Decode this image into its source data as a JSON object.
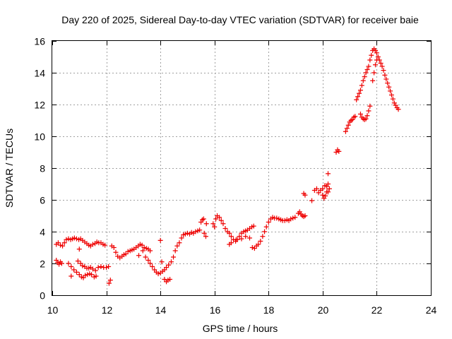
{
  "chart_data": {
    "type": "scatter",
    "title": "Day 220 of 2025, Sidereal Day-to-day VTEC variation (SDTVAR) for receiver baie",
    "xlabel": "GPS time / hours",
    "ylabel": "SDTVAR / TECUs",
    "xlim": [
      10,
      24
    ],
    "ylim": [
      0,
      16
    ],
    "xticks": [
      "10",
      "12",
      "14",
      "16",
      "18",
      "20",
      "22",
      "24"
    ],
    "yticks": [
      "0",
      "2",
      "4",
      "6",
      "8",
      "10",
      "12",
      "14",
      "16"
    ],
    "grid": true,
    "marker": "+",
    "color": "#ee0000",
    "series": [
      {
        "name": "SDTVAR",
        "points": [
          [
            10.15,
            3.2
          ],
          [
            10.22,
            3.3
          ],
          [
            10.3,
            3.15
          ],
          [
            10.38,
            3.1
          ],
          [
            10.45,
            3.3
          ],
          [
            10.52,
            3.5
          ],
          [
            10.6,
            3.55
          ],
          [
            10.68,
            3.5
          ],
          [
            10.75,
            3.55
          ],
          [
            10.82,
            3.6
          ],
          [
            10.9,
            3.55
          ],
          [
            10.98,
            3.5
          ],
          [
            11.05,
            3.55
          ],
          [
            11.12,
            3.45
          ],
          [
            11.2,
            3.35
          ],
          [
            11.28,
            3.25
          ],
          [
            11.35,
            3.15
          ],
          [
            11.42,
            3.1
          ],
          [
            11.5,
            3.2
          ],
          [
            11.58,
            3.25
          ],
          [
            11.65,
            3.35
          ],
          [
            11.72,
            3.3
          ],
          [
            11.8,
            3.3
          ],
          [
            11.88,
            3.2
          ],
          [
            11.95,
            3.15
          ],
          [
            10.15,
            2.2
          ],
          [
            10.2,
            2.05
          ],
          [
            10.25,
            1.95
          ],
          [
            10.3,
            2.1
          ],
          [
            10.35,
            2.0
          ],
          [
            10.6,
            2.0
          ],
          [
            10.7,
            1.8
          ],
          [
            10.8,
            1.6
          ],
          [
            10.9,
            1.45
          ],
          [
            11.0,
            1.3
          ],
          [
            11.08,
            1.15
          ],
          [
            11.15,
            1.1
          ],
          [
            11.22,
            1.25
          ],
          [
            11.3,
            1.3
          ],
          [
            11.38,
            1.35
          ],
          [
            11.45,
            1.3
          ],
          [
            11.55,
            1.15
          ],
          [
            11.62,
            1.2
          ],
          [
            10.7,
            1.2
          ],
          [
            10.95,
            2.15
          ],
          [
            11.05,
            2.0
          ],
          [
            11.12,
            1.85
          ],
          [
            11.2,
            1.8
          ],
          [
            11.28,
            1.7
          ],
          [
            11.35,
            1.7
          ],
          [
            11.42,
            1.75
          ],
          [
            11.5,
            1.65
          ],
          [
            11.6,
            1.55
          ],
          [
            11.7,
            1.75
          ],
          [
            11.8,
            1.8
          ],
          [
            11.9,
            1.75
          ],
          [
            12.0,
            1.75
          ],
          [
            12.08,
            1.8
          ],
          [
            11.0,
            2.9
          ],
          [
            12.1,
            0.75
          ],
          [
            12.15,
            0.95
          ],
          [
            12.2,
            3.1
          ],
          [
            12.28,
            3.0
          ],
          [
            12.35,
            2.7
          ],
          [
            12.42,
            2.45
          ],
          [
            12.5,
            2.35
          ],
          [
            12.58,
            2.45
          ],
          [
            12.65,
            2.55
          ],
          [
            12.72,
            2.6
          ],
          [
            12.8,
            2.75
          ],
          [
            12.88,
            2.8
          ],
          [
            12.95,
            2.85
          ],
          [
            13.02,
            2.9
          ],
          [
            13.1,
            3.0
          ],
          [
            13.18,
            3.1
          ],
          [
            13.25,
            3.2
          ],
          [
            13.32,
            3.15
          ],
          [
            13.4,
            3.0
          ],
          [
            13.48,
            2.95
          ],
          [
            13.55,
            2.9
          ],
          [
            13.62,
            2.8
          ],
          [
            13.2,
            2.5
          ],
          [
            13.35,
            2.8
          ],
          [
            13.45,
            2.4
          ],
          [
            13.55,
            2.2
          ],
          [
            13.62,
            2.0
          ],
          [
            13.7,
            1.8
          ],
          [
            13.78,
            1.6
          ],
          [
            13.85,
            1.45
          ],
          [
            13.92,
            1.35
          ],
          [
            14.0,
            1.4
          ],
          [
            14.08,
            1.5
          ],
          [
            14.15,
            1.6
          ],
          [
            14.22,
            1.75
          ],
          [
            14.3,
            1.9
          ],
          [
            14.0,
            3.45
          ],
          [
            14.05,
            2.1
          ],
          [
            14.15,
            1.0
          ],
          [
            14.22,
            0.85
          ],
          [
            14.28,
            0.95
          ],
          [
            14.35,
            1.0
          ],
          [
            14.4,
            2.1
          ],
          [
            14.48,
            2.4
          ],
          [
            14.55,
            2.8
          ],
          [
            14.62,
            3.1
          ],
          [
            14.7,
            3.3
          ],
          [
            14.78,
            3.6
          ],
          [
            14.85,
            3.8
          ],
          [
            14.92,
            3.85
          ],
          [
            15.0,
            3.9
          ],
          [
            15.08,
            3.85
          ],
          [
            15.15,
            3.95
          ],
          [
            15.22,
            3.9
          ],
          [
            15.3,
            4.0
          ],
          [
            15.38,
            4.05
          ],
          [
            15.45,
            4.1
          ],
          [
            15.5,
            4.6
          ],
          [
            15.55,
            4.75
          ],
          [
            15.6,
            4.8
          ],
          [
            15.62,
            3.9
          ],
          [
            15.68,
            3.7
          ],
          [
            15.7,
            4.5
          ],
          [
            15.95,
            4.5
          ],
          [
            16.0,
            4.3
          ],
          [
            16.05,
            4.8
          ],
          [
            16.1,
            5.0
          ],
          [
            16.18,
            4.9
          ],
          [
            16.25,
            4.7
          ],
          [
            16.32,
            4.5
          ],
          [
            16.4,
            4.2
          ],
          [
            16.48,
            4.0
          ],
          [
            16.55,
            3.9
          ],
          [
            16.62,
            3.7
          ],
          [
            16.7,
            3.5
          ],
          [
            16.78,
            3.4
          ],
          [
            16.85,
            3.5
          ],
          [
            16.92,
            3.7
          ],
          [
            17.0,
            3.9
          ],
          [
            17.08,
            4.0
          ],
          [
            17.15,
            4.05
          ],
          [
            17.22,
            4.1
          ],
          [
            17.3,
            4.2
          ],
          [
            17.38,
            4.3
          ],
          [
            17.45,
            4.35
          ],
          [
            16.55,
            3.2
          ],
          [
            16.62,
            3.3
          ],
          [
            16.8,
            3.5
          ],
          [
            17.0,
            3.55
          ],
          [
            17.15,
            3.7
          ],
          [
            17.3,
            3.6
          ],
          [
            17.4,
            3.0
          ],
          [
            17.48,
            2.95
          ],
          [
            17.55,
            3.1
          ],
          [
            17.62,
            3.2
          ],
          [
            17.7,
            3.4
          ],
          [
            17.78,
            3.7
          ],
          [
            17.85,
            4.0
          ],
          [
            17.92,
            4.3
          ],
          [
            18.0,
            4.6
          ],
          [
            18.08,
            4.8
          ],
          [
            18.15,
            4.9
          ],
          [
            18.22,
            4.85
          ],
          [
            18.3,
            4.85
          ],
          [
            18.38,
            4.8
          ],
          [
            18.45,
            4.75
          ],
          [
            18.52,
            4.7
          ],
          [
            18.6,
            4.7
          ],
          [
            18.68,
            4.75
          ],
          [
            18.75,
            4.7
          ],
          [
            18.82,
            4.8
          ],
          [
            18.9,
            4.85
          ],
          [
            18.98,
            4.9
          ],
          [
            19.1,
            5.15
          ],
          [
            19.15,
            5.25
          ],
          [
            19.2,
            5.1
          ],
          [
            19.25,
            5.0
          ],
          [
            19.3,
            4.95
          ],
          [
            19.35,
            5.0
          ],
          [
            19.3,
            6.4
          ],
          [
            19.35,
            6.3
          ],
          [
            19.6,
            5.95
          ],
          [
            19.7,
            6.6
          ],
          [
            19.78,
            6.7
          ],
          [
            19.85,
            6.45
          ],
          [
            19.92,
            6.6
          ],
          [
            20.0,
            6.7
          ],
          [
            20.08,
            6.9
          ],
          [
            20.15,
            6.85
          ],
          [
            20.2,
            7.0
          ],
          [
            20.0,
            6.3
          ],
          [
            20.05,
            6.1
          ],
          [
            20.1,
            6.25
          ],
          [
            20.15,
            6.5
          ],
          [
            20.2,
            6.5
          ],
          [
            20.25,
            6.7
          ],
          [
            20.2,
            7.65
          ],
          [
            20.5,
            9.0
          ],
          [
            20.55,
            9.15
          ],
          [
            20.6,
            9.05
          ],
          [
            20.85,
            10.3
          ],
          [
            20.9,
            10.5
          ],
          [
            20.95,
            10.7
          ],
          [
            21.0,
            10.9
          ],
          [
            21.05,
            11.0
          ],
          [
            21.1,
            11.05
          ],
          [
            21.15,
            11.2
          ],
          [
            21.2,
            11.25
          ],
          [
            21.25,
            12.3
          ],
          [
            21.3,
            12.5
          ],
          [
            21.35,
            12.7
          ],
          [
            21.4,
            12.9
          ],
          [
            21.45,
            13.2
          ],
          [
            21.5,
            13.5
          ],
          [
            21.55,
            13.75
          ],
          [
            21.6,
            14.0
          ],
          [
            21.65,
            14.2
          ],
          [
            21.7,
            14.4
          ],
          [
            21.75,
            14.8
          ],
          [
            21.8,
            15.1
          ],
          [
            21.85,
            15.4
          ],
          [
            21.9,
            15.5
          ],
          [
            21.95,
            15.4
          ],
          [
            22.0,
            15.25
          ],
          [
            22.05,
            15.0
          ],
          [
            22.1,
            14.8
          ],
          [
            22.15,
            14.6
          ],
          [
            22.2,
            14.4
          ],
          [
            22.25,
            14.15
          ],
          [
            22.3,
            13.85
          ],
          [
            22.35,
            13.6
          ],
          [
            22.4,
            13.35
          ],
          [
            22.45,
            13.1
          ],
          [
            22.5,
            12.85
          ],
          [
            22.55,
            12.6
          ],
          [
            22.6,
            12.35
          ],
          [
            22.65,
            12.1
          ],
          [
            22.7,
            11.95
          ],
          [
            22.75,
            11.8
          ],
          [
            22.8,
            11.7
          ],
          [
            21.4,
            11.4
          ],
          [
            21.45,
            11.2
          ],
          [
            21.5,
            11.1
          ],
          [
            21.55,
            11.05
          ],
          [
            21.6,
            11.1
          ],
          [
            21.65,
            11.3
          ],
          [
            21.7,
            11.6
          ],
          [
            21.75,
            11.9
          ],
          [
            21.85,
            13.5
          ],
          [
            21.9,
            14.0
          ],
          [
            21.95,
            14.5
          ],
          [
            22.0,
            14.8
          ]
        ]
      }
    ]
  }
}
